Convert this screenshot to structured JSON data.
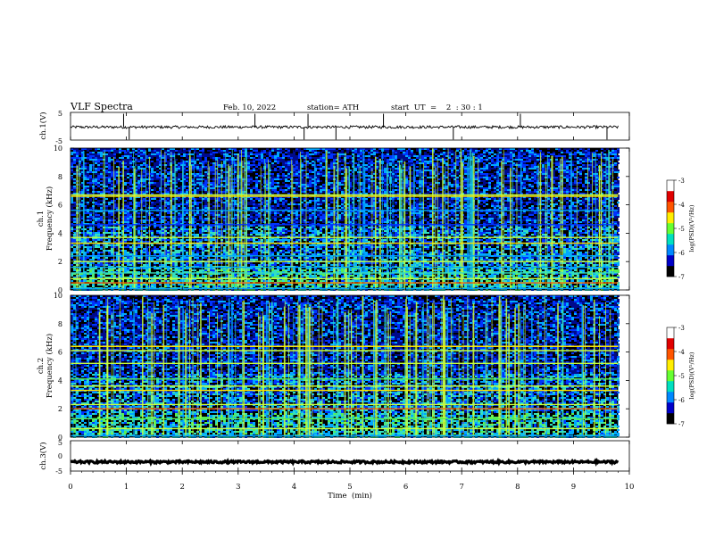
{
  "header": {
    "title": "VLF  Spectra",
    "date": "Feb. 10, 2022",
    "station": "station= ATH",
    "start_ut": "start  UT  =    2  : 30 : 1"
  },
  "chart_data": [
    {
      "type": "line",
      "id": "ch1-waveform",
      "ylabel": "ch.1(V)",
      "ylim": [
        -5,
        5
      ],
      "ytick_labels": [
        "-5",
        "5"
      ],
      "xlim": [
        0,
        10
      ],
      "data_extent_min": 9.8,
      "baseline_v": -0.3,
      "noise_amplitude_v": 0.5,
      "spikes_min": [
        0.95,
        1.05,
        3.3,
        4.18,
        4.25,
        4.75,
        5.6,
        6.85,
        8.05,
        9.6
      ]
    },
    {
      "type": "heatmap",
      "id": "ch1-spectrogram",
      "ylabel": "ch.1\nFrequency  (kHz)",
      "ylim": [
        0,
        10
      ],
      "ytick_labels": [
        "0",
        "2",
        "4",
        "6",
        "8",
        "10"
      ],
      "xlim": [
        0,
        10
      ],
      "data_extent_min": 9.8,
      "colorbar": {
        "label": "log(PSD)(V²/Hz)",
        "range": [
          -7,
          -3
        ],
        "tick_labels": [
          "-3",
          "-4",
          "-5",
          "-6",
          "-7"
        ]
      },
      "colors": [
        "#000000",
        "#000a8c",
        "#0033ff",
        "#00a8ff",
        "#33e0c0",
        "#55ee55",
        "#c8ff3c",
        "#ffe600",
        "#ff6600",
        "#e60000"
      ],
      "bands_khz": [
        {
          "f": 0.1,
          "level": 3
        },
        {
          "f": 0.5,
          "level": 8
        },
        {
          "f": 0.8,
          "level": 6
        },
        {
          "f": 1.2,
          "level": 4
        },
        {
          "f": 1.6,
          "level": 3
        },
        {
          "f": 2.0,
          "level": 6
        },
        {
          "f": 2.4,
          "level": 3
        },
        {
          "f": 3.3,
          "level": 7
        },
        {
          "f": 3.7,
          "level": 6
        },
        {
          "f": 4.6,
          "level": 2
        },
        {
          "f": 5.6,
          "level": 3
        },
        {
          "f": 6.6,
          "level": 7
        },
        {
          "f": 6.7,
          "level": 6
        }
      ]
    },
    {
      "type": "heatmap",
      "id": "ch2-spectrogram",
      "ylabel": "ch.2\nFrequency  (kHz)",
      "ylim": [
        0,
        10
      ],
      "ytick_labels": [
        "0",
        "2",
        "4",
        "6",
        "8",
        "10"
      ],
      "xlim": [
        0,
        10
      ],
      "data_extent_min": 9.8,
      "colorbar": {
        "label": "log(PSD)(V²/Hz)",
        "range": [
          -7,
          -3
        ],
        "tick_labels": [
          "-3",
          "-4",
          "-5",
          "-6",
          "-7"
        ]
      },
      "colors": [
        "#000000",
        "#000a8c",
        "#0033ff",
        "#00a8ff",
        "#33e0c0",
        "#55ee55",
        "#c8ff3c",
        "#ffe600",
        "#ff6600",
        "#e60000"
      ],
      "bands_khz": [
        {
          "f": 0.1,
          "level": 3
        },
        {
          "f": 0.6,
          "level": 6
        },
        {
          "f": 1.3,
          "level": 5
        },
        {
          "f": 2.0,
          "level": 8
        },
        {
          "f": 2.3,
          "level": 6
        },
        {
          "f": 3.3,
          "level": 7
        },
        {
          "f": 3.6,
          "level": 6
        },
        {
          "f": 4.1,
          "level": 5
        },
        {
          "f": 5.2,
          "level": 6
        },
        {
          "f": 6.1,
          "level": 6
        },
        {
          "f": 6.4,
          "level": 7
        }
      ]
    },
    {
      "type": "line",
      "id": "ch3-waveform",
      "ylabel": "ch.3(V)",
      "ylim": [
        -5,
        5
      ],
      "ytick_labels": [
        "-5",
        "0",
        "5"
      ],
      "xlim": [
        0,
        10
      ],
      "data_extent_min": 9.8,
      "baseline_v": -2.0,
      "noise_amplitude_v": 0.35,
      "spikes_min": []
    }
  ],
  "x_axis": {
    "label": "Time  (min)",
    "tick_labels": [
      "0",
      "1",
      "2",
      "3",
      "4",
      "5",
      "6",
      "7",
      "8",
      "9",
      "10"
    ]
  }
}
